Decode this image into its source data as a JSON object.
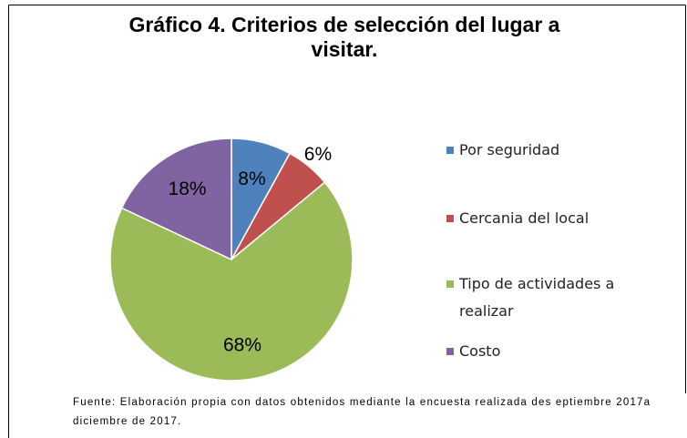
{
  "chart_data": {
    "type": "pie",
    "title": "Gráfico 4. Criterios de selección del lugar a visitar.",
    "categories": [
      "Por seguridad",
      "Cercania del local",
      "Tipo de actividades a realizar",
      "Costo"
    ],
    "values": [
      8,
      6,
      68,
      18
    ],
    "value_labels": [
      "8%",
      "6%",
      "68%",
      "18%"
    ],
    "colors": [
      "#4f81bd",
      "#c0504d",
      "#9bbb59",
      "#8064a2"
    ],
    "legend": "right",
    "note": "Fuente: Elaboración propia con datos obtenidos mediante la encuesta realizada des eptiembre 2017a diciembre de 2017."
  }
}
